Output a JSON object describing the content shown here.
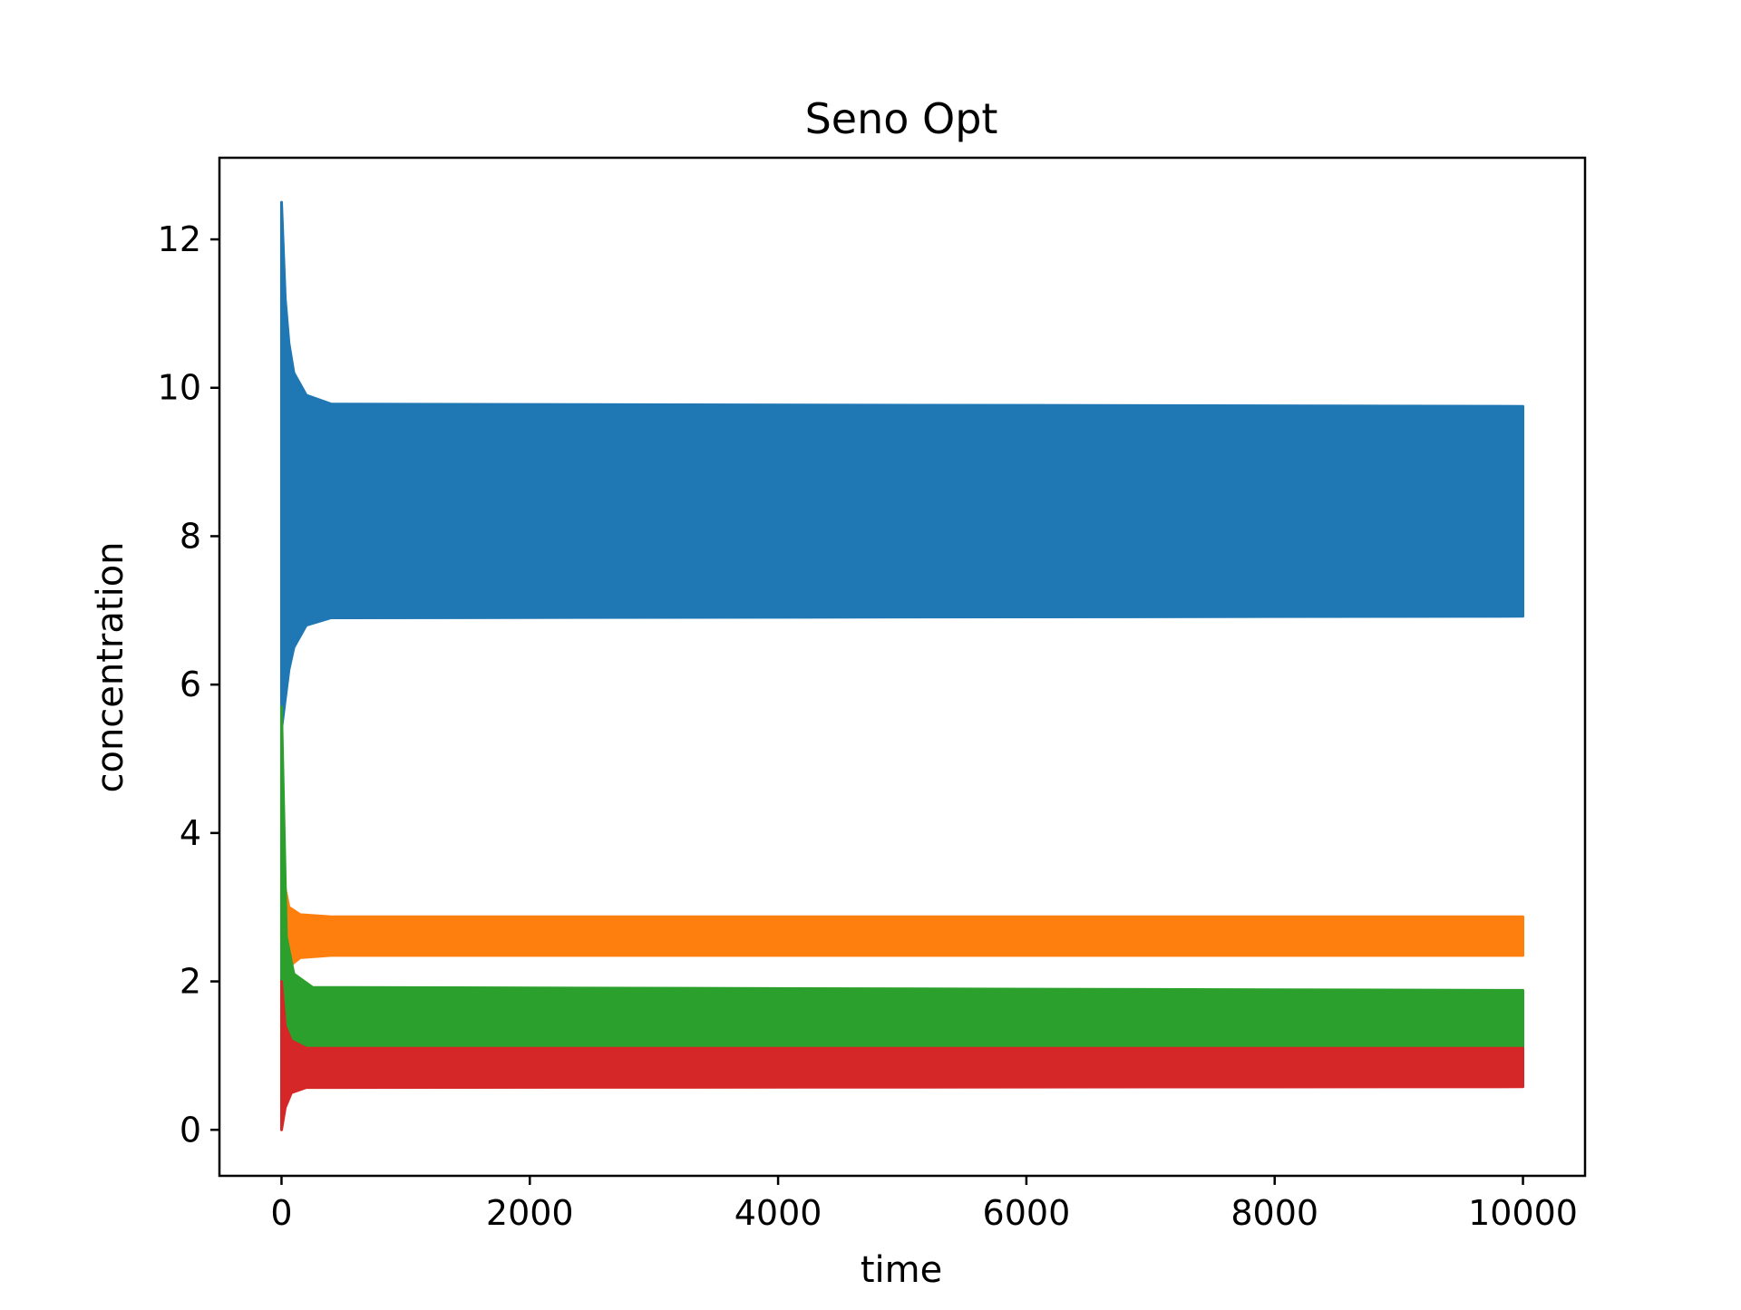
{
  "chart_data": {
    "type": "area",
    "title": "Seno Opt",
    "xlabel": "time",
    "ylabel": "concentration",
    "xlim": [
      -500,
      10500
    ],
    "ylim": [
      -0.62,
      13.1
    ],
    "xticks": [
      0,
      2000,
      4000,
      6000,
      8000,
      10000
    ],
    "yticks": [
      0,
      2,
      4,
      6,
      8,
      10,
      12
    ],
    "grid": false,
    "legend": "none",
    "description": "oscillating trajectories shown as filled bands between min and max envelopes",
    "series": [
      {
        "color": "#1f77b4",
        "points": [
          {
            "x": 0,
            "min": 5.4,
            "max": 12.5
          },
          {
            "x": 30,
            "min": 5.8,
            "max": 11.2
          },
          {
            "x": 60,
            "min": 6.2,
            "max": 10.6
          },
          {
            "x": 100,
            "min": 6.5,
            "max": 10.2
          },
          {
            "x": 200,
            "min": 6.8,
            "max": 9.9
          },
          {
            "x": 400,
            "min": 6.9,
            "max": 9.78
          },
          {
            "x": 10000,
            "min": 6.92,
            "max": 9.75
          }
        ]
      },
      {
        "color": "#ff7f0e",
        "points": [
          {
            "x": 0,
            "min": 1.9,
            "max": 3.5
          },
          {
            "x": 60,
            "min": 2.2,
            "max": 3.0
          },
          {
            "x": 150,
            "min": 2.32,
            "max": 2.9
          },
          {
            "x": 400,
            "min": 2.35,
            "max": 2.87
          },
          {
            "x": 10000,
            "min": 2.35,
            "max": 2.87
          }
        ]
      },
      {
        "color": "#2ca02c",
        "points": [
          {
            "x": 0,
            "min": 1.1,
            "max": 5.7
          },
          {
            "x": 40,
            "min": 1.1,
            "max": 2.6
          },
          {
            "x": 100,
            "min": 1.1,
            "max": 2.1
          },
          {
            "x": 250,
            "min": 1.1,
            "max": 1.92
          },
          {
            "x": 10000,
            "min": 1.1,
            "max": 1.88
          }
        ]
      },
      {
        "color": "#d62728",
        "points": [
          {
            "x": 0,
            "min": 0.0,
            "max": 2.0
          },
          {
            "x": 30,
            "min": 0.3,
            "max": 1.4
          },
          {
            "x": 80,
            "min": 0.5,
            "max": 1.2
          },
          {
            "x": 200,
            "min": 0.57,
            "max": 1.1
          },
          {
            "x": 10000,
            "min": 0.58,
            "max": 1.1
          }
        ]
      }
    ]
  }
}
